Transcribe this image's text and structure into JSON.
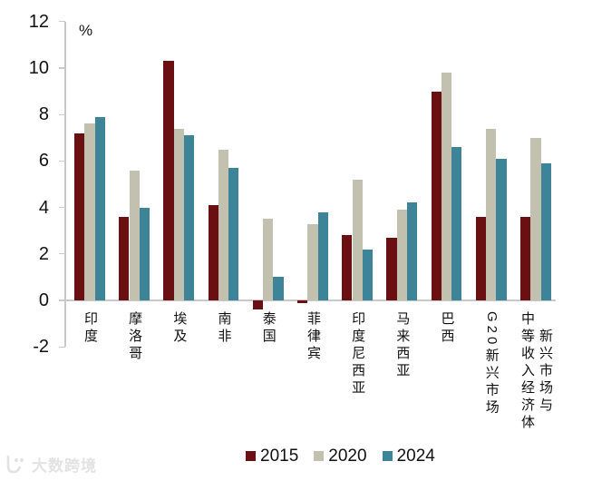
{
  "unit_label": "%",
  "watermark": {
    "text": "大数跨境"
  },
  "colors": {
    "series_2015": "#6a1012",
    "series_2020": "#c2c1af",
    "series_2024": "#3d8498",
    "axis_line": "#c9c9c9",
    "watermark": "#e2e2e2",
    "text": "#111111"
  },
  "legend": [
    {
      "label": "2015",
      "color": "#6a1012"
    },
    {
      "label": "2020",
      "color": "#c2c1af"
    },
    {
      "label": "2024",
      "color": "#3d8498"
    }
  ],
  "chart_data": {
    "type": "bar",
    "title": "",
    "ylabel": "%",
    "xlabel": "",
    "ylim": [
      -2,
      12
    ],
    "yticks": [
      12,
      10,
      8,
      6,
      4,
      2,
      0,
      -2
    ],
    "grid": false,
    "legend_position": "bottom",
    "categories": [
      "印度",
      "摩洛哥",
      "埃及",
      "南非",
      "泰国",
      "菲律宾",
      "印度尼西亚",
      "马来西亚",
      "巴西",
      "G20新兴市场",
      "新兴市场与\n中等收入经济体"
    ],
    "series": [
      {
        "name": "2015",
        "color": "#6a1012",
        "values": [
          7.2,
          3.6,
          10.3,
          4.1,
          -0.4,
          -0.1,
          2.8,
          2.7,
          9.0,
          3.6,
          3.6
        ]
      },
      {
        "name": "2020",
        "color": "#c2c1af",
        "values": [
          7.6,
          5.6,
          7.4,
          6.5,
          3.5,
          3.3,
          5.2,
          3.9,
          9.8,
          7.4,
          7.0
        ]
      },
      {
        "name": "2024",
        "color": "#3d8498",
        "values": [
          7.9,
          4.0,
          7.1,
          5.7,
          1.0,
          3.8,
          2.2,
          4.2,
          6.6,
          6.1,
          5.9
        ]
      }
    ]
  }
}
